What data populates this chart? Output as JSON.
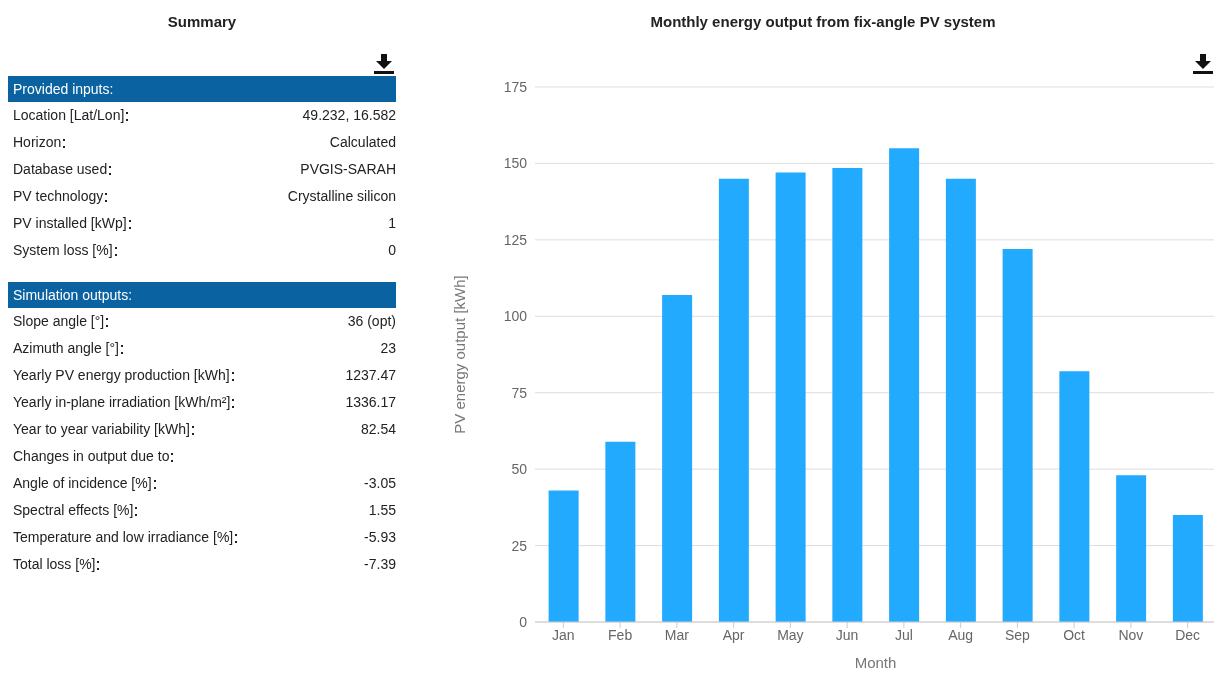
{
  "chart_data": [
    {
      "type": "other",
      "title": "Summary",
      "subtitle": "Provided inputs:",
      "categories": [
        "Location [Lat/Lon]",
        "Horizon",
        "Database used",
        "PV technology",
        "PV installed [kWp]",
        "System loss [%]"
      ],
      "value_labels": [
        "49.232, 16.582",
        "Calculated",
        "PVGIS-SARAH",
        "Crystalline silicon",
        "1",
        "0"
      ]
    },
    {
      "type": "other",
      "subtitle": "Simulation outputs:",
      "categories": [
        "Slope angle [°]",
        "Azimuth angle [°]",
        "Yearly PV energy production [kWh]",
        "Yearly in-plane irradiation [kWh/m²]",
        "Year to year variability [kWh]",
        "Changes in output due to",
        "Angle of incidence [%]",
        "Spectral effects [%]",
        "Temperature and low irradiance [%]",
        "Total loss [%]"
      ],
      "value_labels": [
        "36 (opt)",
        "23",
        "1237.47",
        "1336.17",
        "82.54",
        null,
        "-3.05",
        "1.55",
        "-5.93",
        "-7.39"
      ]
    },
    {
      "type": "bar",
      "title": "Monthly energy output from fix-angle PV system",
      "xlabel": "Month",
      "ylabel": "PV energy output [kWh]",
      "categories": [
        "Jan",
        "Feb",
        "Mar",
        "Apr",
        "May",
        "Jun",
        "Jul",
        "Aug",
        "Sep",
        "Oct",
        "Nov",
        "Dec"
      ],
      "values": [
        43,
        59,
        107,
        145,
        147,
        148.5,
        155,
        145,
        122,
        82,
        48,
        35
      ],
      "color": "#22aaff",
      "ylim": [
        0,
        175
      ],
      "yticks": [
        0,
        25,
        50,
        75,
        100,
        125,
        150,
        175
      ],
      "grid": "y"
    }
  ]
}
